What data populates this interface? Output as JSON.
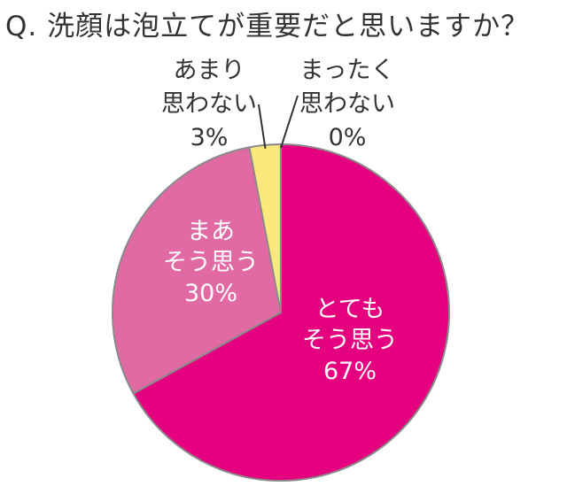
{
  "title": "Q. 洗顔は泡立てが重要だと思いますか？",
  "chart_data": {
    "type": "pie",
    "title": "Q. 洗顔は泡立てが重要だと思いますか？",
    "slices": [
      {
        "label_lines": [
          "とても",
          "そう思う"
        ],
        "value": 67,
        "value_label": "67%",
        "color": "#e4007f",
        "label_color": "#ffffff"
      },
      {
        "label_lines": [
          "まあ",
          "そう思う"
        ],
        "value": 30,
        "value_label": "30%",
        "color": "#e16aa4",
        "label_color": "#ffffff"
      },
      {
        "label_lines": [
          "あまり",
          "思わない"
        ],
        "value": 3,
        "value_label": "3%",
        "color": "#fbe97d",
        "label_color": "#333333"
      },
      {
        "label_lines": [
          "まったく",
          "思わない"
        ],
        "value": 0,
        "value_label": "0%",
        "color": "#ffffff",
        "label_color": "#333333"
      }
    ],
    "start_angle_deg": 0,
    "direction": "clockwise",
    "border_color": "#8a8a8a"
  }
}
